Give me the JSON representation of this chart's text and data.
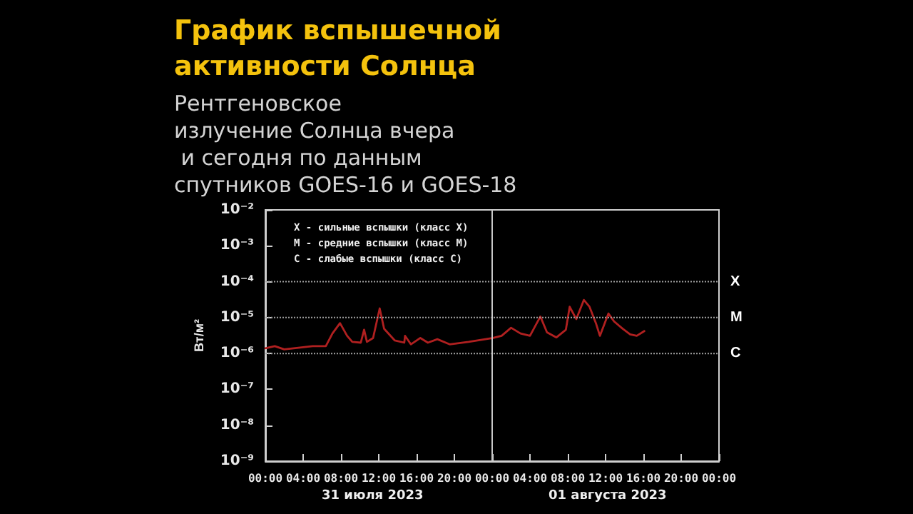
{
  "chart_data": {
    "type": "line",
    "title": "График вспышечной активности Солнца",
    "subtitle": "Рентгеновское излучение Солнца вчера и сегодня по данным спутников GOES-16 и GOES-18",
    "ylabel": "Вт/м²",
    "annotations": [
      "X - сильные вспышки (класс X)",
      "M - средние вспышки (класс M)",
      "C - слабые вспышки (класс C)",
      "31 июля 2023",
      "01 августа 2023"
    ],
    "series": [
      {
        "color": "#b02020",
        "x": [
          "2023-07-31T00:00",
          "2023-07-31T01:00",
          "2023-07-31T02:00",
          "2023-07-31T04:00",
          "2023-07-31T05:00",
          "2023-07-31T06:24",
          "2023-07-31T07:06",
          "2023-07-31T07:54",
          "2023-07-31T08:39",
          "2023-07-31T09:12",
          "2023-07-31T10:06",
          "2023-07-31T10:27",
          "2023-07-31T10:45",
          "2023-07-31T11:24",
          "2023-07-31T12:06",
          "2023-07-31T12:34",
          "2023-07-31T13:42",
          "2023-07-31T14:42",
          "2023-07-31T14:47",
          "2023-07-31T15:24",
          "2023-07-31T16:24",
          "2023-07-31T17:12",
          "2023-07-31T18:12",
          "2023-07-31T19:30",
          "2023-07-31T21:30",
          "2023-08-01T00:06",
          "2023-08-01T01:00",
          "2023-08-01T02:00",
          "2023-08-01T03:00",
          "2023-08-01T04:00",
          "2023-08-01T05:06",
          "2023-08-01T05:48",
          "2023-08-01T06:48",
          "2023-08-01T07:48",
          "2023-08-01T08:12",
          "2023-08-01T08:54",
          "2023-08-01T09:42",
          "2023-08-01T10:18",
          "2023-08-01T11:00",
          "2023-08-01T11:24",
          "2023-08-01T12:18",
          "2023-08-01T12:54",
          "2023-08-01T13:48",
          "2023-08-01T14:36",
          "2023-08-01T15:18",
          "2023-08-01T16:06"
        ],
        "values": [
          1.4e-06,
          1.6e-06,
          1.3e-06,
          1.5e-06,
          1.6e-06,
          1.6e-06,
          3.6e-06,
          7e-06,
          3.1e-06,
          2.1e-06,
          2e-06,
          4.6e-06,
          2.1e-06,
          2.7e-06,
          1.8e-05,
          4.9e-06,
          2.3e-06,
          2e-06,
          3.1e-06,
          1.8e-06,
          2.7e-06,
          2e-06,
          2.5e-06,
          1.8e-06,
          2.1e-06,
          2.7e-06,
          3.1e-06,
          5.2e-06,
          3.6e-06,
          3.1e-06,
          1.07e-05,
          3.9e-06,
          2.8e-06,
          4.6e-06,
          2e-05,
          9.1e-06,
          3.1e-05,
          2e-05,
          6.7e-06,
          3.1e-06,
          1.3e-05,
          7.8e-06,
          4.9e-06,
          3.4e-06,
          3.1e-06,
          4.2e-06
        ]
      }
    ],
    "log": "y",
    "xlim": [
      "2023-07-31T00:00",
      "2023-08-02T00:00"
    ],
    "xticks": [
      {
        "value": "2023-07-31T00:00",
        "label": "00:00"
      },
      {
        "value": "2023-07-31T04:00",
        "label": "04:00"
      },
      {
        "value": "2023-07-31T08:00",
        "label": "08:00"
      },
      {
        "value": "2023-07-31T12:00",
        "label": "12:00"
      },
      {
        "value": "2023-07-31T16:00",
        "label": "16:00"
      },
      {
        "value": "2023-07-31T20:00",
        "label": "20:00"
      },
      {
        "value": "2023-08-01T00:00",
        "label": "00:00"
      },
      {
        "value": "2023-08-01T04:00",
        "label": "04:00"
      },
      {
        "value": "2023-08-01T08:00",
        "label": "08:00"
      },
      {
        "value": "2023-08-01T12:00",
        "label": "12:00"
      },
      {
        "value": "2023-08-01T16:00",
        "label": "16:00"
      },
      {
        "value": "2023-08-01T20:00",
        "label": "20:00"
      },
      {
        "value": "2023-08-02T00:00",
        "label": "00:00"
      }
    ],
    "ylim": [
      1e-09,
      0.01
    ],
    "yticks": [
      {
        "value": 1e-09,
        "label": "10⁻⁹"
      },
      {
        "value": 1e-08,
        "label": "10⁻⁸"
      },
      {
        "value": 1e-07,
        "label": "10⁻⁷"
      },
      {
        "value": 1e-06,
        "label": "10⁻⁶"
      },
      {
        "value": 1e-05,
        "label": "10⁻⁵"
      },
      {
        "value": 0.0001,
        "label": "10⁻⁴"
      },
      {
        "value": 0.001,
        "label": "10⁻³"
      },
      {
        "value": 0.01,
        "label": "10⁻²"
      }
    ],
    "ref_lines": [
      {
        "axis": "x",
        "value": "2023-08-01T00:00",
        "color": "#c8c8c8",
        "line_style": "solid"
      },
      {
        "axis": "y",
        "value": 1e-06,
        "label": "C",
        "color": "#a0a0a0",
        "line_style": "dotted"
      },
      {
        "axis": "y",
        "value": 1e-05,
        "label": "M",
        "color": "#a0a0a0",
        "line_style": "dotted"
      },
      {
        "axis": "y",
        "value": 0.0001,
        "label": "X",
        "color": "#a0a0a0",
        "line_style": "dotted"
      }
    ],
    "grid": false,
    "marker": "none",
    "line_style": "solid"
  }
}
